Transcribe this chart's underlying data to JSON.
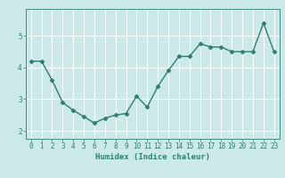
{
  "x": [
    0,
    1,
    2,
    3,
    4,
    5,
    6,
    7,
    8,
    9,
    10,
    11,
    12,
    13,
    14,
    15,
    16,
    17,
    18,
    19,
    20,
    21,
    22,
    23
  ],
  "y": [
    4.2,
    4.2,
    3.6,
    2.9,
    2.65,
    2.45,
    2.25,
    2.4,
    2.5,
    2.55,
    3.1,
    2.75,
    3.4,
    3.9,
    4.35,
    4.35,
    4.75,
    4.65,
    4.65,
    4.5,
    4.5,
    4.5,
    5.4,
    4.5
  ],
  "line_color": "#2e7d6e",
  "marker": "D",
  "marker_size": 2.5,
  "line_width": 1.0,
  "bg_color": "#cce9ea",
  "grid_color": "#ffffff",
  "xlabel": "Humidex (Indice chaleur)",
  "xlim": [
    -0.5,
    23.5
  ],
  "ylim": [
    1.75,
    5.85
  ],
  "yticks": [
    2,
    3,
    4,
    5
  ],
  "xticks": [
    0,
    1,
    2,
    3,
    4,
    5,
    6,
    7,
    8,
    9,
    10,
    11,
    12,
    13,
    14,
    15,
    16,
    17,
    18,
    19,
    20,
    21,
    22,
    23
  ],
  "tick_label_fontsize": 5.5,
  "xlabel_fontsize": 6.5,
  "tick_color": "#2e7d6e",
  "axis_color": "#2e7d6e"
}
